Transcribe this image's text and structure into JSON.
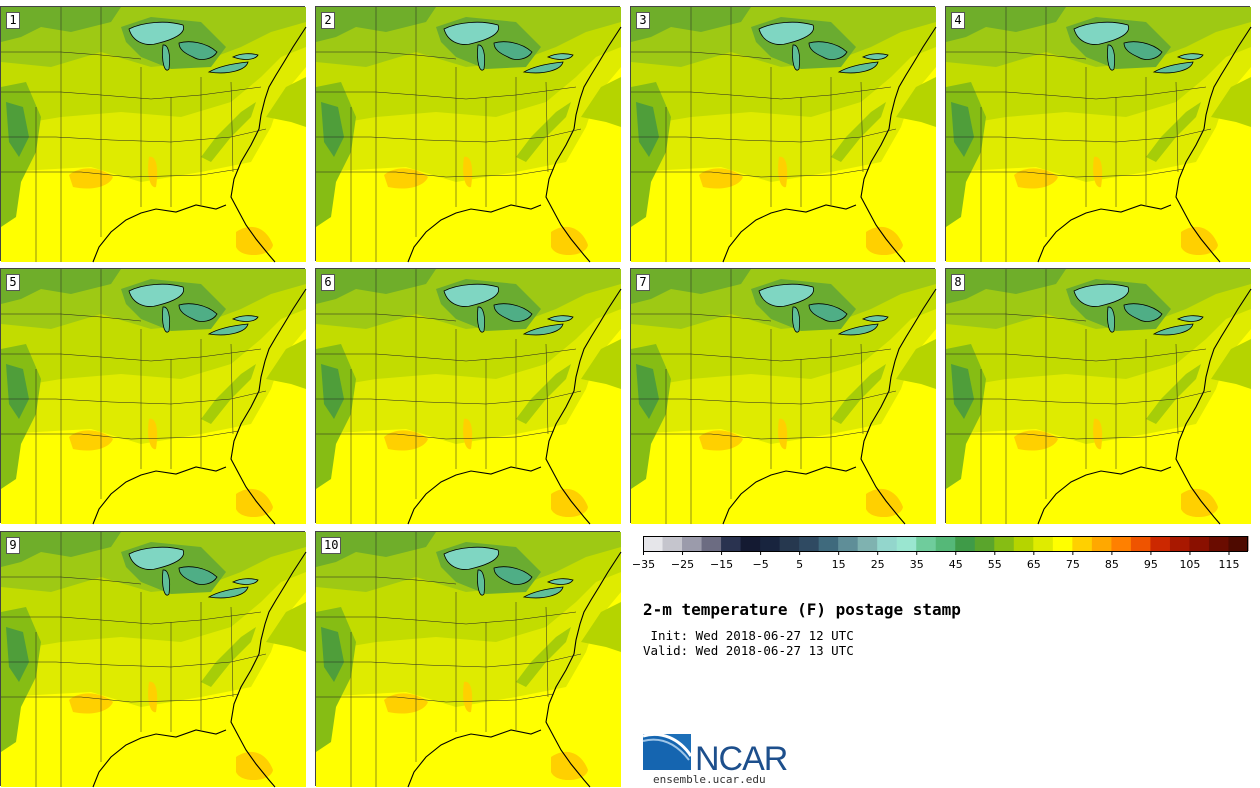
{
  "title": "2-m temperature (F) postage stamp",
  "init_time": " Init: Wed 2018-06-27 12 UTC",
  "valid_time": "Valid: Wed 2018-06-27 13 UTC",
  "members": [
    "1",
    "2",
    "3",
    "4",
    "5",
    "6",
    "7",
    "8",
    "9",
    "10"
  ],
  "colorbar": {
    "min": -35,
    "max": 120,
    "step": 5,
    "tick_labels": [
      "−35",
      "−25",
      "−15",
      "−5",
      "5",
      "15",
      "25",
      "35",
      "45",
      "55",
      "65",
      "75",
      "85",
      "95",
      "105",
      "115"
    ],
    "colors": [
      "#e6e6ea",
      "#c5c5cd",
      "#9b9bab",
      "#6c6c82",
      "#2a3350",
      "#141a32",
      "#18243e",
      "#26384f",
      "#2f4a62",
      "#3f6a7d",
      "#5f8e98",
      "#7fb2b0",
      "#93d6cc",
      "#9ae6d0",
      "#6fcc9c",
      "#55b878",
      "#3f9b48",
      "#5aa52c",
      "#86bd14",
      "#b5d400",
      "#dfeb00",
      "#ffff00",
      "#ffd000",
      "#ffa800",
      "#ff8000",
      "#ef5400",
      "#cc2800",
      "#a81800",
      "#8a1000",
      "#6a0c00",
      "#4e0a00"
    ]
  },
  "logo_text": "NCAR",
  "logo_url": "ensemble.ucar.edu"
}
